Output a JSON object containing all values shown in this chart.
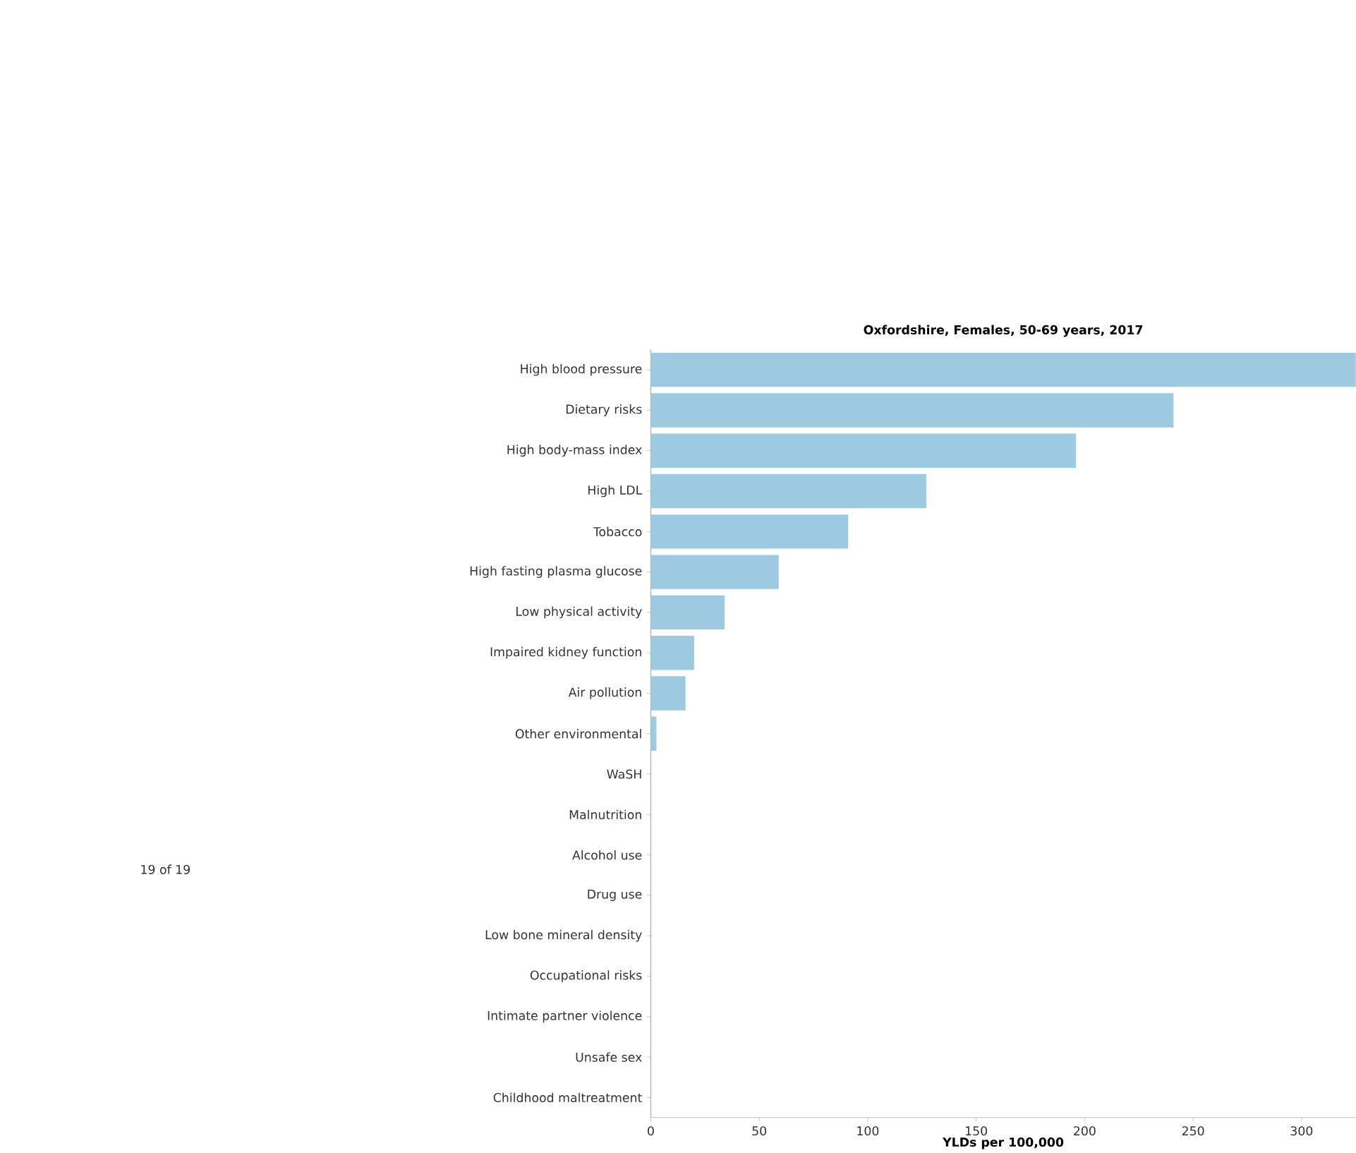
{
  "chart_data": {
    "type": "bar",
    "orientation": "horizontal",
    "title": "Oxfordshire, Females, 50-69 years, 2017",
    "xlabel": "YLDs per 100,000",
    "categories": [
      "High blood pressure",
      "Dietary risks",
      "High body-mass index",
      "High LDL",
      "Tobacco",
      "High fasting plasma glucose",
      "Low physical activity",
      "Impaired kidney function",
      "Air pollution",
      "Other environmental",
      "WaSH",
      "Malnutrition",
      "Alcohol use",
      "Drug use",
      "Low bone mineral density",
      "Occupational risks",
      "Intimate partner violence",
      "Unsafe sex",
      "Childhood maltreatment"
    ],
    "values": [
      325,
      241,
      196,
      127,
      91,
      59,
      34,
      20,
      16,
      2.6,
      0,
      0,
      0,
      0,
      0,
      0,
      0,
      0,
      0
    ],
    "color": "#9ecae1",
    "xlim": [
      0,
      325
    ],
    "xticks": [
      0,
      50,
      100,
      150,
      200,
      250,
      300
    ],
    "annotations": [
      "19 of 19"
    ]
  }
}
